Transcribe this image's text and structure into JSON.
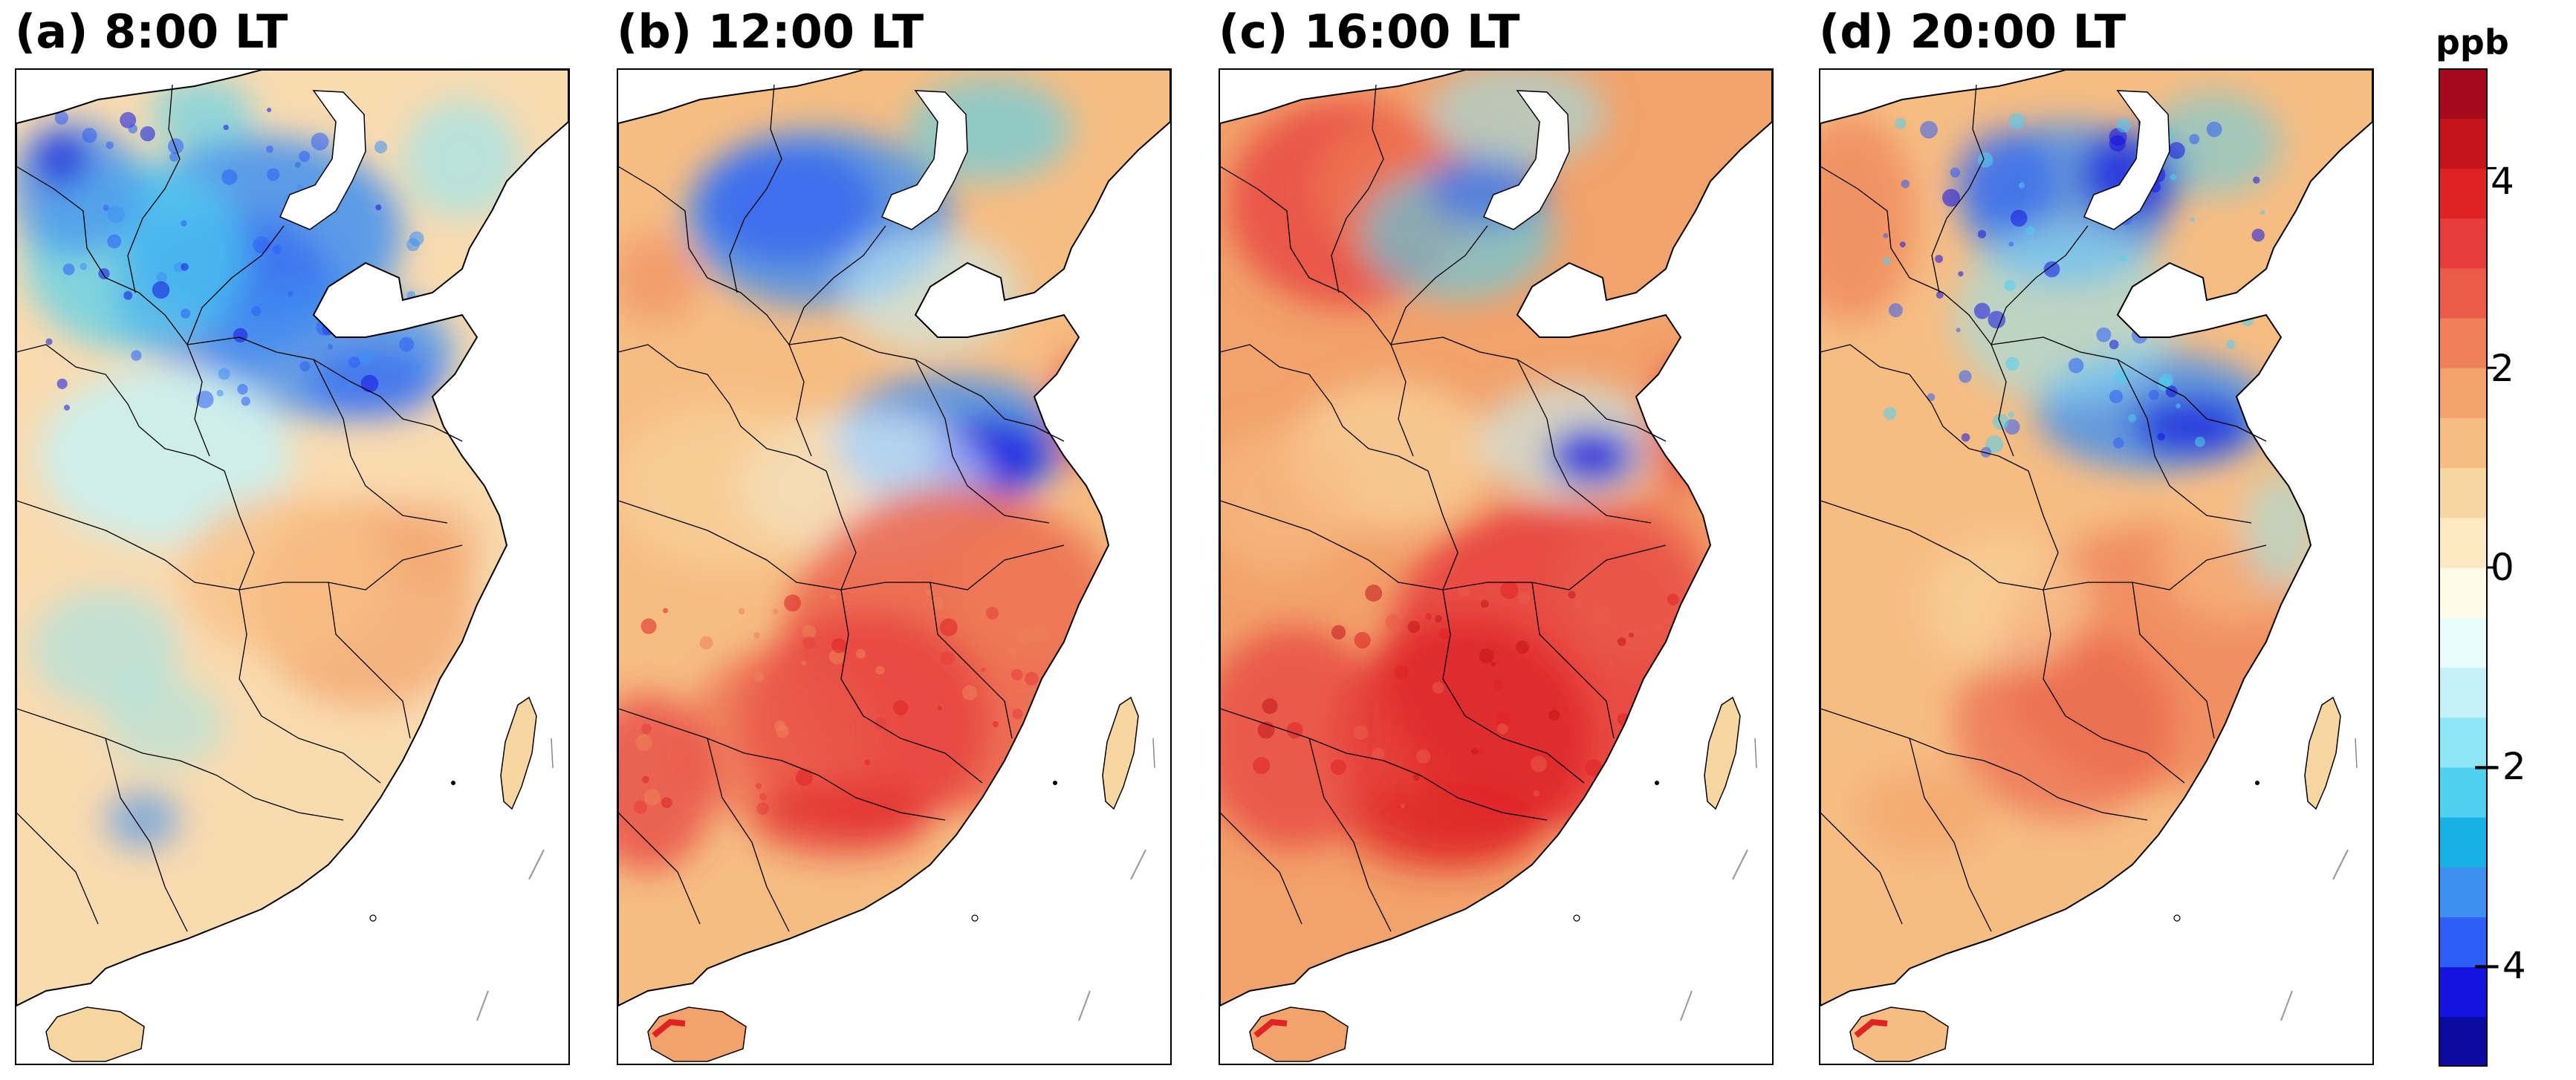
{
  "panels": [
    {
      "id": "a",
      "title": "(a) 8:00 LT"
    },
    {
      "id": "b",
      "title": "(b) 12:00 LT"
    },
    {
      "id": "c",
      "title": "(c) 16:00 LT"
    },
    {
      "id": "d",
      "title": "(d) 20:00 LT"
    }
  ],
  "colorbar": {
    "unit": "ppb",
    "range": [
      -5,
      5
    ],
    "ticks": [
      "4",
      "2",
      "0",
      "−2",
      "−4"
    ],
    "tick_values": [
      4,
      2,
      0,
      -2,
      -4
    ],
    "colors": [
      "#0a0a9e",
      "#1414e0",
      "#2d5ef5",
      "#3f8ff0",
      "#17b1e5",
      "#4fd0f0",
      "#8fe6f5",
      "#c4f2f8",
      "#e9fbfb",
      "#fffbe6",
      "#fce9c2",
      "#f8d6a0",
      "#f6bd83",
      "#f2a26b",
      "#ee8157",
      "#ea5c48",
      "#e63d3d",
      "#df2224",
      "#c3151b",
      "#a5091b"
    ]
  }
}
